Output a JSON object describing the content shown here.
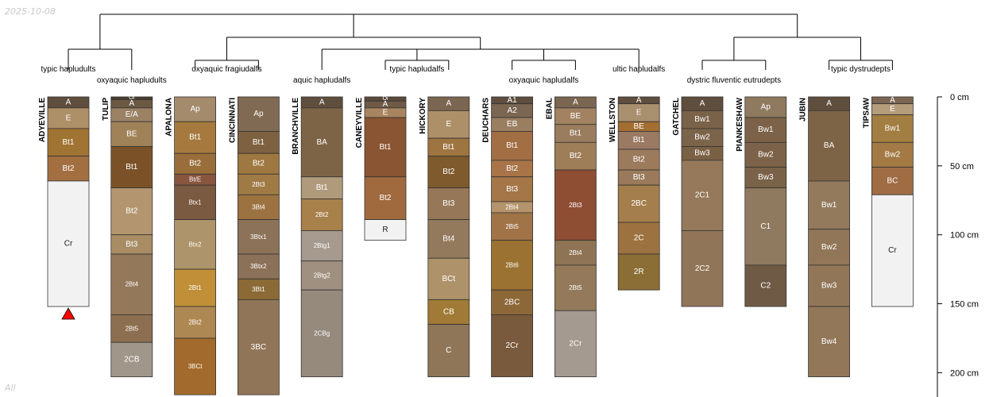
{
  "header": {
    "date": "2025-10-08"
  },
  "footer": {
    "label": "All"
  },
  "axis": {
    "ticks": [
      {
        "depth": 0,
        "label": "0 cm"
      },
      {
        "depth": 50,
        "label": "50 cm"
      },
      {
        "depth": 100,
        "label": "100 cm"
      },
      {
        "depth": 150,
        "label": "150 cm"
      },
      {
        "depth": 200,
        "label": "200 cm"
      }
    ]
  },
  "colors": {
    "line": "#000000",
    "border": "#333333",
    "marker": "#ff0000",
    "light_text_threshold": 130
  },
  "taxa": [
    {
      "label": "typic hapludults",
      "profiles": [
        "ADYEVILLE"
      ]
    },
    {
      "label": "oxyaquic hapludults",
      "profiles": [
        "TULIP"
      ]
    },
    {
      "label": "oxyaquic fragiudalfs",
      "profiles": [
        "APALONA",
        "CINCINNATI"
      ]
    },
    {
      "label": "aquic hapludalfs",
      "profiles": [
        "BRANCHVILLE"
      ]
    },
    {
      "label": "typic hapludalfs",
      "profiles": [
        "CANEYVILLE",
        "HICKORY"
      ]
    },
    {
      "label": "oxyaquic hapludalfs",
      "profiles": [
        "DEUCHARS",
        "EBAL"
      ]
    },
    {
      "label": "ultic hapludalfs",
      "profiles": [
        "WELLSTON"
      ]
    },
    {
      "label": "dystric fluventic eutrudepts",
      "profiles": [
        "GATCHEL",
        "PIANKESHAW"
      ]
    },
    {
      "label": "typic dystrudepts",
      "profiles": [
        "JUBIN",
        "TIPSAW"
      ]
    }
  ],
  "profiles": [
    {
      "name": "ADYEVILLE",
      "marker": "bottom-triangle",
      "horizons": [
        {
          "name": "A",
          "top": 0,
          "bottom": 8,
          "color": "#5f4e3e"
        },
        {
          "name": "E",
          "top": 8,
          "bottom": 23,
          "color": "#ae9068"
        },
        {
          "name": "Bt1",
          "top": 23,
          "bottom": 43,
          "color": "#a07432"
        },
        {
          "name": "Bt2",
          "top": 43,
          "bottom": 61,
          "color": "#a36f41"
        },
        {
          "name": "Cr",
          "top": 61,
          "bottom": 152,
          "color": "#f2f2f2"
        }
      ]
    },
    {
      "name": "TULIP",
      "horizons": [
        {
          "name": "Oi",
          "top": 0,
          "bottom": 2,
          "color": "#4a3e2f"
        },
        {
          "name": "A",
          "top": 2,
          "bottom": 8,
          "color": "#6b5944"
        },
        {
          "name": "E/A",
          "top": 8,
          "bottom": 18,
          "color": "#9b8264"
        },
        {
          "name": "BE",
          "top": 18,
          "bottom": 36,
          "color": "#a08259"
        },
        {
          "name": "Bt1",
          "top": 36,
          "bottom": 66,
          "color": "#7b5228"
        },
        {
          "name": "Bt2",
          "top": 66,
          "bottom": 100,
          "color": "#b39670"
        },
        {
          "name": "Bt3",
          "top": 100,
          "bottom": 114,
          "color": "#a88c64"
        },
        {
          "name": "2Bt4",
          "top": 114,
          "bottom": 158,
          "color": "#94785a"
        },
        {
          "name": "2Bt5",
          "top": 158,
          "bottom": 178,
          "color": "#8c6f50"
        },
        {
          "name": "2CB",
          "top": 178,
          "bottom": 203,
          "color": "#a0968a"
        }
      ]
    },
    {
      "name": "APALONA",
      "horizons": [
        {
          "name": "Ap",
          "top": 0,
          "bottom": 18,
          "color": "#a38b6c"
        },
        {
          "name": "Bt1",
          "top": 18,
          "bottom": 41,
          "color": "#a67a3e"
        },
        {
          "name": "Bt2",
          "top": 41,
          "bottom": 56,
          "color": "#9a6e3a"
        },
        {
          "name": "Bt/E",
          "top": 56,
          "bottom": 64,
          "color": "#88563e"
        },
        {
          "name": "Btx1",
          "top": 64,
          "bottom": 89,
          "color": "#7a5a40"
        },
        {
          "name": "Btx2",
          "top": 89,
          "bottom": 125,
          "color": "#ae946a"
        },
        {
          "name": "2Bt1",
          "top": 125,
          "bottom": 152,
          "color": "#c08f37"
        },
        {
          "name": "2Bt2",
          "top": 152,
          "bottom": 175,
          "color": "#ae8852"
        },
        {
          "name": "3BCt",
          "top": 175,
          "bottom": 216,
          "color": "#a26a2c"
        }
      ]
    },
    {
      "name": "CINCINNATI",
      "horizons": [
        {
          "name": "Ap",
          "top": 0,
          "bottom": 25,
          "color": "#806a54"
        },
        {
          "name": "Bt1",
          "top": 25,
          "bottom": 41,
          "color": "#7e6141"
        },
        {
          "name": "Bt2",
          "top": 41,
          "bottom": 56,
          "color": "#9e7840"
        },
        {
          "name": "2Bt3",
          "top": 56,
          "bottom": 71,
          "color": "#a07a45"
        },
        {
          "name": "3Bt4",
          "top": 71,
          "bottom": 89,
          "color": "#9c7240"
        },
        {
          "name": "3Btx1",
          "top": 89,
          "bottom": 114,
          "color": "#8b7259"
        },
        {
          "name": "3Btx2",
          "top": 114,
          "bottom": 132,
          "color": "#8c7159"
        },
        {
          "name": "3Bt1",
          "top": 132,
          "bottom": 147,
          "color": "#8b6a35"
        },
        {
          "name": "3BC",
          "top": 147,
          "bottom": 216,
          "color": "#917558"
        }
      ]
    },
    {
      "name": "BRANCHVILLE",
      "horizons": [
        {
          "name": "A",
          "top": 0,
          "bottom": 8,
          "color": "#5f4e3e"
        },
        {
          "name": "BA",
          "top": 8,
          "bottom": 58,
          "color": "#7e6446"
        },
        {
          "name": "Bt1",
          "top": 58,
          "bottom": 74,
          "color": "#b09a7c"
        },
        {
          "name": "2Bt2",
          "top": 74,
          "bottom": 97,
          "color": "#a8804a"
        },
        {
          "name": "2Btg1",
          "top": 97,
          "bottom": 119,
          "color": "#a59a8d"
        },
        {
          "name": "2Btg2",
          "top": 119,
          "bottom": 140,
          "color": "#a09080"
        },
        {
          "name": "2CBg",
          "top": 140,
          "bottom": 203,
          "color": "#968a7d"
        }
      ]
    },
    {
      "name": "CANEYVILLE",
      "horizons": [
        {
          "name": "Oi",
          "top": 0,
          "bottom": 3,
          "color": "#5a4a3a"
        },
        {
          "name": "A",
          "top": 3,
          "bottom": 8,
          "color": "#6e5a45"
        },
        {
          "name": "E",
          "top": 8,
          "bottom": 15,
          "color": "#a88560"
        },
        {
          "name": "Bt1",
          "top": 15,
          "bottom": 58,
          "color": "#8a5532"
        },
        {
          "name": "Bt2",
          "top": 58,
          "bottom": 89,
          "color": "#a06a3e"
        },
        {
          "name": "R",
          "top": 89,
          "bottom": 104,
          "color": "#f2f2f2"
        }
      ]
    },
    {
      "name": "HICKORY",
      "horizons": [
        {
          "name": "A",
          "top": 0,
          "bottom": 10,
          "color": "#7b6652"
        },
        {
          "name": "E",
          "top": 10,
          "bottom": 30,
          "color": "#ae9068"
        },
        {
          "name": "Bt1",
          "top": 30,
          "bottom": 43,
          "color": "#9e7540"
        },
        {
          "name": "Bt2",
          "top": 43,
          "bottom": 66,
          "color": "#7e5a2c"
        },
        {
          "name": "Bt3",
          "top": 66,
          "bottom": 89,
          "color": "#967858"
        },
        {
          "name": "Bt4",
          "top": 89,
          "bottom": 117,
          "color": "#937a5c"
        },
        {
          "name": "BCt",
          "top": 117,
          "bottom": 147,
          "color": "#ae926a"
        },
        {
          "name": "CB",
          "top": 147,
          "bottom": 165,
          "color": "#a07a36"
        },
        {
          "name": "C",
          "top": 165,
          "bottom": 203,
          "color": "#8f7658"
        }
      ]
    },
    {
      "name": "DEUCHARS",
      "horizons": [
        {
          "name": "A1",
          "top": 0,
          "bottom": 5,
          "color": "#5f4e3e"
        },
        {
          "name": "A2",
          "top": 5,
          "bottom": 15,
          "color": "#7b6652"
        },
        {
          "name": "EB",
          "top": 15,
          "bottom": 25,
          "color": "#9a7e60"
        },
        {
          "name": "Bt1",
          "top": 25,
          "bottom": 46,
          "color": "#a26e44"
        },
        {
          "name": "Bt2",
          "top": 46,
          "bottom": 58,
          "color": "#a87448"
        },
        {
          "name": "Bt3",
          "top": 58,
          "bottom": 76,
          "color": "#a47648"
        },
        {
          "name": "2Bt4",
          "top": 76,
          "bottom": 84,
          "color": "#b4946c"
        },
        {
          "name": "2Bt5",
          "top": 84,
          "bottom": 104,
          "color": "#a07446"
        },
        {
          "name": "2Bt6",
          "top": 104,
          "bottom": 140,
          "color": "#9b7232"
        },
        {
          "name": "2BC",
          "top": 140,
          "bottom": 158,
          "color": "#8c6838"
        },
        {
          "name": "2Cr",
          "top": 158,
          "bottom": 203,
          "color": "#7a5a3c"
        }
      ]
    },
    {
      "name": "EBAL",
      "horizons": [
        {
          "name": "A",
          "top": 0,
          "bottom": 8,
          "color": "#7b6652"
        },
        {
          "name": "BE",
          "top": 8,
          "bottom": 20,
          "color": "#a28260"
        },
        {
          "name": "Bt1",
          "top": 20,
          "bottom": 33,
          "color": "#9a7c5e"
        },
        {
          "name": "Bt2",
          "top": 33,
          "bottom": 53,
          "color": "#9e7e58"
        },
        {
          "name": "2Bt3",
          "top": 53,
          "bottom": 104,
          "color": "#8e4e34"
        },
        {
          "name": "2Bt4",
          "top": 104,
          "bottom": 122,
          "color": "#8e7454"
        },
        {
          "name": "2Bt5",
          "top": 122,
          "bottom": 155,
          "color": "#947a5a"
        },
        {
          "name": "2Cr",
          "top": 155,
          "bottom": 203,
          "color": "#a49a8f"
        }
      ]
    },
    {
      "name": "WELLSTON",
      "horizons": [
        {
          "name": "A",
          "top": 0,
          "bottom": 5,
          "color": "#5f4e3e"
        },
        {
          "name": "E",
          "top": 5,
          "bottom": 18,
          "color": "#a88f6e"
        },
        {
          "name": "BE",
          "top": 18,
          "bottom": 25,
          "color": "#a26e32"
        },
        {
          "name": "Bt1",
          "top": 25,
          "bottom": 38,
          "color": "#9a7a62"
        },
        {
          "name": "Bt2",
          "top": 38,
          "bottom": 53,
          "color": "#9c7a5c"
        },
        {
          "name": "Bt3",
          "top": 53,
          "bottom": 64,
          "color": "#9a7a5a"
        },
        {
          "name": "2BC",
          "top": 64,
          "bottom": 91,
          "color": "#a47e4c"
        },
        {
          "name": "2C",
          "top": 91,
          "bottom": 114,
          "color": "#9c7240"
        },
        {
          "name": "2R",
          "top": 114,
          "bottom": 140,
          "color": "#8a6e36"
        }
      ]
    },
    {
      "name": "GATCHEL",
      "horizons": [
        {
          "name": "A",
          "top": 0,
          "bottom": 10,
          "color": "#5f4e3e"
        },
        {
          "name": "Bw1",
          "top": 10,
          "bottom": 23,
          "color": "#7a6248"
        },
        {
          "name": "Bw2",
          "top": 23,
          "bottom": 36,
          "color": "#7c644a"
        },
        {
          "name": "Bw3",
          "top": 36,
          "bottom": 46,
          "color": "#7a6044"
        },
        {
          "name": "2C1",
          "top": 46,
          "bottom": 97,
          "color": "#95795a"
        },
        {
          "name": "2C2",
          "top": 97,
          "bottom": 152,
          "color": "#917558"
        }
      ]
    },
    {
      "name": "PIANKESHAW",
      "horizons": [
        {
          "name": "Ap",
          "top": 0,
          "bottom": 15,
          "color": "#8f7a5f"
        },
        {
          "name": "Bw1",
          "top": 15,
          "bottom": 33,
          "color": "#7c6248"
        },
        {
          "name": "Bw2",
          "top": 33,
          "bottom": 51,
          "color": "#7c6248"
        },
        {
          "name": "Bw3",
          "top": 51,
          "bottom": 66,
          "color": "#7a6248"
        },
        {
          "name": "C1",
          "top": 66,
          "bottom": 122,
          "color": "#8f7a5f"
        },
        {
          "name": "C2",
          "top": 122,
          "bottom": 152,
          "color": "#6f5a45"
        }
      ]
    },
    {
      "name": "JUBIN",
      "horizons": [
        {
          "name": "A",
          "top": 0,
          "bottom": 10,
          "color": "#5f4e3e"
        },
        {
          "name": "BA",
          "top": 10,
          "bottom": 61,
          "color": "#7e6446"
        },
        {
          "name": "Bw1",
          "top": 61,
          "bottom": 96,
          "color": "#937a5c"
        },
        {
          "name": "Bw2",
          "top": 96,
          "bottom": 122,
          "color": "#917658"
        },
        {
          "name": "Bw3",
          "top": 122,
          "bottom": 152,
          "color": "#917658"
        },
        {
          "name": "Bw4",
          "top": 152,
          "bottom": 203,
          "color": "#927758"
        }
      ]
    },
    {
      "name": "TIPSAW",
      "horizons": [
        {
          "name": "A",
          "top": 0,
          "bottom": 5,
          "color": "#7b6652"
        },
        {
          "name": "E",
          "top": 5,
          "bottom": 13,
          "color": "#b59c7a"
        },
        {
          "name": "Bw1",
          "top": 13,
          "bottom": 33,
          "color": "#a27e42"
        },
        {
          "name": "Bw2",
          "top": 33,
          "bottom": 51,
          "color": "#a37a44"
        },
        {
          "name": "BC",
          "top": 51,
          "bottom": 71,
          "color": "#a06c44"
        },
        {
          "name": "Cr",
          "top": 71,
          "bottom": 152,
          "color": "#f2f2f2"
        }
      ]
    }
  ]
}
